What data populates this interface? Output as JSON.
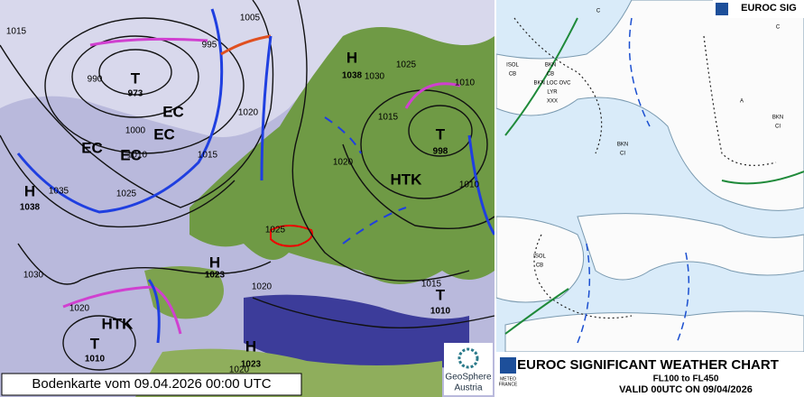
{
  "left": {
    "caption": "Bodenkarte vom 09.04.2026 00:00 UTC",
    "logo": [
      "GeoSphere",
      "Austria"
    ],
    "labels": [
      "H",
      "1038",
      "T",
      "973",
      "EC",
      "EC",
      "EC",
      "EC",
      "H",
      "1038",
      "T",
      "998",
      "HTK",
      "H",
      "1023",
      "HTK",
      "T",
      "1010",
      "H",
      "1023",
      "T",
      "1010",
      "1015",
      "990",
      "995",
      "1005",
      "1000",
      "1010",
      "1015",
      "1020",
      "1025",
      "1035",
      "1030",
      "1030",
      "1025",
      "1015",
      "1020",
      "1010",
      "1025",
      "1010",
      "1020",
      "1015",
      "1020",
      "1020"
    ]
  },
  "right": {
    "header": "EUROC SIG",
    "title": "EUROC SIGNIFICANT WEATHER CHART",
    "subtitle": "FL100 to FL450",
    "valid": "VALID 00UTC ON 09/04/2026",
    "agency": [
      "METEO",
      "FRANCE"
    ],
    "labels": [
      "ISOL",
      "CB",
      "BKN",
      "CB",
      "BKN LOC OVC",
      "LYR",
      "BKN",
      "CI",
      "XXX",
      "ISOL",
      "CB",
      "C",
      "C",
      "A",
      "BKN",
      "CI"
    ]
  }
}
